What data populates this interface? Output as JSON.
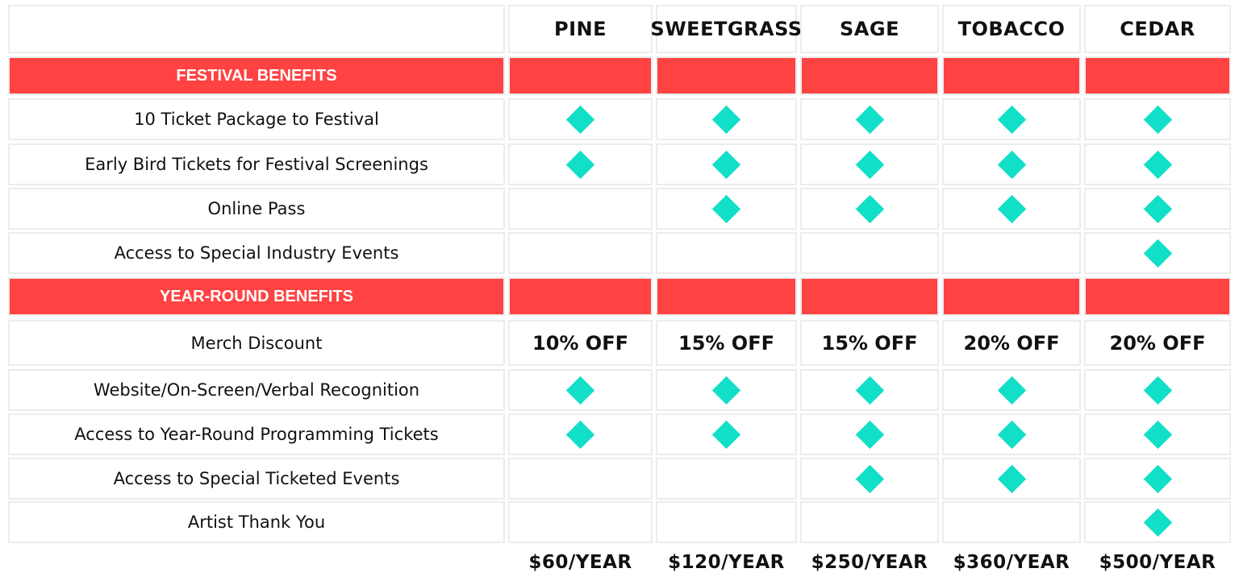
{
  "tiers": [
    "PINE",
    "SWEETGRASS",
    "SAGE",
    "TOBACCO",
    "CEDAR"
  ],
  "prices": [
    "$60/YEAR",
    "$120/YEAR",
    "$250/YEAR",
    "$360/YEAR",
    "$500/YEAR"
  ],
  "sections": [
    {
      "title": "FESTIVAL BENEFITS",
      "rows": [
        {
          "label": "10 Ticket Package to Festival",
          "values": [
            true,
            true,
            true,
            true,
            true
          ]
        },
        {
          "label": "Early Bird Tickets for Festival Screenings",
          "values": [
            true,
            true,
            true,
            true,
            true
          ]
        },
        {
          "label": "Online Pass",
          "values": [
            false,
            true,
            true,
            true,
            true
          ]
        },
        {
          "label": "Access to Special Industry Events",
          "values": [
            false,
            false,
            false,
            false,
            true
          ]
        }
      ]
    },
    {
      "title": "YEAR-ROUND BENEFITS",
      "rows": [
        {
          "label": "Merch Discount",
          "values": [
            "10% OFF",
            "15% OFF",
            "15% OFF",
            "20% OFF",
            "20% OFF"
          ]
        },
        {
          "label": "Website/On-Screen/Verbal Recognition",
          "values": [
            true,
            true,
            true,
            true,
            true
          ]
        },
        {
          "label": "Access to Year-Round Programming Tickets",
          "values": [
            true,
            true,
            true,
            true,
            true
          ]
        },
        {
          "label": "Access to Special Ticketed Events",
          "values": [
            false,
            false,
            true,
            true,
            true
          ]
        },
        {
          "label": "Artist Thank You",
          "values": [
            false,
            false,
            false,
            false,
            true
          ]
        }
      ]
    }
  ],
  "colors": {
    "section_band": "#ff4242",
    "check_diamond": "#12dfc8"
  },
  "icons": {
    "included": "diamond-icon"
  }
}
